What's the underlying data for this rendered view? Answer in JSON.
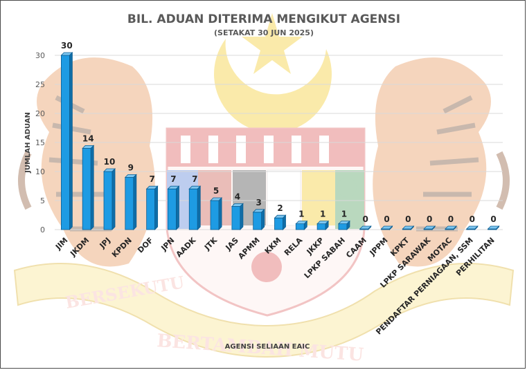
{
  "chart_data": {
    "type": "bar",
    "title": "BIL. ADUAN DITERIMA MENGIKUT AGENSI",
    "subtitle": "(SETAKAT 30 JUN 2025)",
    "xlabel": "AGENSI SELIAAN EAIC",
    "ylabel": "JUMLAH ADUAN",
    "ylim": [
      0,
      30
    ],
    "yticks": [
      "0",
      "5",
      "10",
      "15",
      "20",
      "25",
      "30"
    ],
    "grid": true,
    "legend": "none",
    "bar_color": "#1e9be3",
    "categories": [
      "JIM",
      "JKDM",
      "JPJ",
      "KPDN",
      "DOF",
      "JPN",
      "AADK",
      "JTK",
      "JAS",
      "APMM",
      "KKM",
      "RELA",
      "JKKP",
      "LPKP SABAH",
      "CAAM",
      "JPPM",
      "KPKT",
      "LPKP SARAWAK",
      "MOTAC",
      "PENDAFTAR PERNIAGAAN, SSM",
      "PERHILITAN"
    ],
    "values": [
      30,
      14,
      10,
      9,
      7,
      7,
      7,
      5,
      4,
      3,
      2,
      1,
      1,
      1,
      0,
      0,
      0,
      0,
      0,
      0,
      0
    ]
  },
  "watermark": {
    "ribbon_left_text": "BERSEKUTU",
    "ribbon_center_text": "BERTAMBAH MUTU"
  }
}
